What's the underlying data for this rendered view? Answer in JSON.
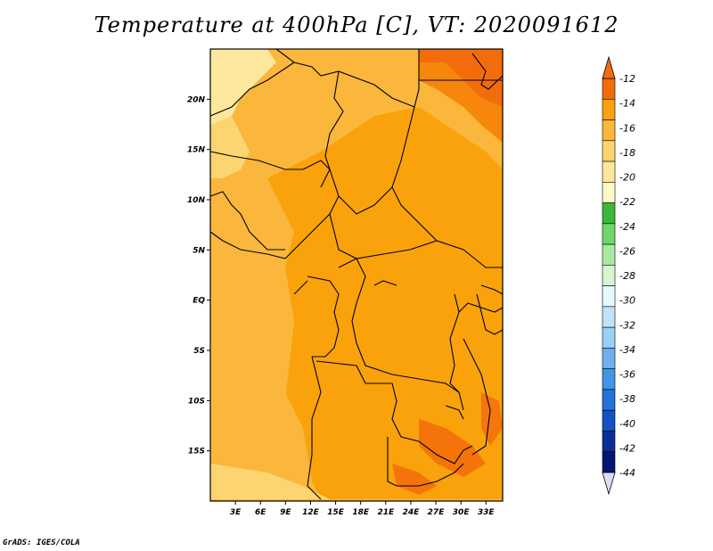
{
  "title": "Temperature at 400hPa [C], VT: 2020091612",
  "credit": "GrADS: IGES/COLA",
  "map": {
    "lon_range": [
      0,
      35
    ],
    "lat_range": [
      -20,
      25
    ],
    "lat_labels": [
      {
        "lat": 20,
        "text": "20N"
      },
      {
        "lat": 15,
        "text": "15N"
      },
      {
        "lat": 10,
        "text": "10N"
      },
      {
        "lat": 5,
        "text": "5N"
      },
      {
        "lat": 0,
        "text": "EQ"
      },
      {
        "lat": -5,
        "text": "5S"
      },
      {
        "lat": -10,
        "text": "10S"
      },
      {
        "lat": -15,
        "text": "15S"
      }
    ],
    "lon_labels": [
      {
        "lon": 3,
        "text": "3E"
      },
      {
        "lon": 6,
        "text": "6E"
      },
      {
        "lon": 9,
        "text": "9E"
      },
      {
        "lon": 12,
        "text": "12E"
      },
      {
        "lon": 15,
        "text": "15E"
      },
      {
        "lon": 18,
        "text": "18E"
      },
      {
        "lon": 21,
        "text": "21E"
      },
      {
        "lon": 24,
        "text": "24E"
      },
      {
        "lon": 27,
        "text": "27E"
      },
      {
        "lon": 30,
        "text": "30E"
      },
      {
        "lon": 33,
        "text": "33E"
      }
    ],
    "field_colors": {
      "t_18_16": "#fcd570",
      "t_16_14": "#fbb73c",
      "t_14_12": "#f9a20c",
      "t_gt_12": "#f36c0c",
      "t_20_18": "#fde79c",
      "border": "#000000"
    }
  },
  "colorbar": {
    "levels": [
      "-12",
      "-14",
      "-16",
      "-18",
      "-20",
      "-22",
      "-24",
      "-26",
      "-28",
      "-30",
      "-32",
      "-34",
      "-36",
      "-38",
      "-40",
      "-42",
      "-44"
    ],
    "colors": [
      "#f36c0c",
      "#f9a20c",
      "#fbb73c",
      "#fcd570",
      "#fde79c",
      "#fefac8",
      "#3bb837",
      "#6fd66a",
      "#a8eaa3",
      "#d6f6d2",
      "#e8f8ff",
      "#bfe3fb",
      "#9ccef6",
      "#6eb0ef",
      "#4393e6",
      "#2471d8",
      "#1252c3",
      "#0a2f98",
      "#041670"
    ],
    "top_triangle_color": "#f36c0c",
    "bottom_triangle_color": "#dcdcf6"
  }
}
